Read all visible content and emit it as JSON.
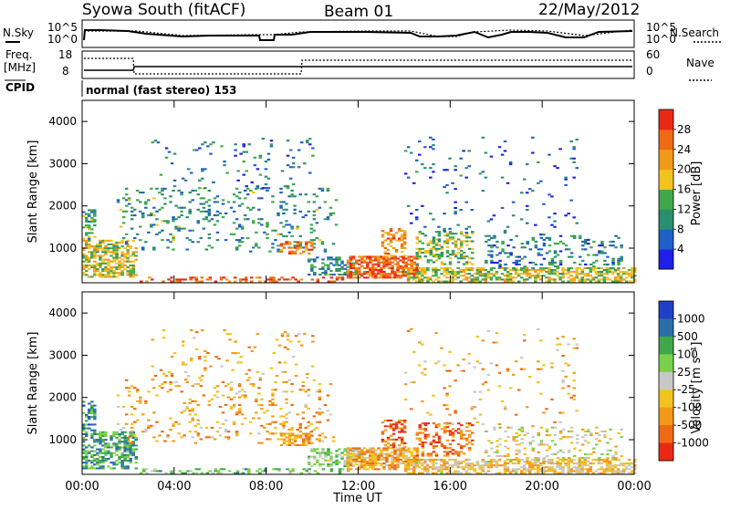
{
  "header": {
    "station": "Syowa South (fitACF)",
    "beam": "Beam 01",
    "date": "22/May/2012"
  },
  "status_panel": {
    "left_top_label": "N.Sky",
    "left_top_ticks": [
      "10^5",
      "10^0"
    ],
    "right_top_ticks": [
      "10^5",
      "10^0"
    ],
    "right_top_label": "N.Search",
    "freq_label_line1": "Freq.",
    "freq_label_line2": "[MHz]",
    "freq_ticks": [
      "18",
      "8"
    ],
    "nave_ticks": [
      "60",
      "0"
    ],
    "nave_label": "Nave",
    "cpid_label": "CPID",
    "cpid_text": "normal (fast stereo) 153"
  },
  "time_axis": {
    "label": "Time UT",
    "ticks": [
      "00:00",
      "04:00",
      "08:00",
      "12:00",
      "16:00",
      "20:00",
      "00:00"
    ]
  },
  "chart_data": [
    {
      "type": "heatmap",
      "panel": "power",
      "ylabel": "Slant Range [km]",
      "yticks": [
        "1000",
        "2000",
        "3000",
        "4000"
      ],
      "ylim": [
        180,
        4500
      ],
      "xlim": [
        0,
        24
      ],
      "colorbar": {
        "label": "Power [dB]",
        "ticks": [
          "4",
          "8",
          "12",
          "16",
          "20",
          "24",
          "28"
        ],
        "colors": [
          "#1f1fe8",
          "#1f5fc8",
          "#2a8f6e",
          "#3fa84a",
          "#f2c21f",
          "#f29a1a",
          "#ee6a14",
          "#e82a14"
        ]
      },
      "bands": [
        {
          "t0": 0.0,
          "t1": 2.3,
          "r0": 300,
          "r1": 1200,
          "density": 0.55,
          "bias": 0.55
        },
        {
          "t0": 0.0,
          "t1": 0.6,
          "r0": 1200,
          "r1": 1900,
          "density": 0.45,
          "bias": 0.35
        },
        {
          "t0": 1.5,
          "t1": 11.0,
          "r0": 900,
          "r1": 2400,
          "density": 0.12,
          "bias": 0.3
        },
        {
          "t0": 3.0,
          "t1": 10.0,
          "r0": 2400,
          "r1": 3600,
          "density": 0.05,
          "bias": 0.2
        },
        {
          "t0": 2.5,
          "t1": 11.5,
          "r0": 190,
          "r1": 320,
          "density": 0.35,
          "bias": 0.9
        },
        {
          "t0": 8.6,
          "t1": 10.0,
          "r0": 850,
          "r1": 1150,
          "density": 0.55,
          "bias": 0.85
        },
        {
          "t0": 9.8,
          "t1": 12.0,
          "r0": 350,
          "r1": 800,
          "density": 0.45,
          "bias": 0.3
        },
        {
          "t0": 11.5,
          "t1": 14.5,
          "r0": 280,
          "r1": 800,
          "density": 0.7,
          "bias": 0.9
        },
        {
          "t0": 13.0,
          "t1": 14.0,
          "r0": 800,
          "r1": 1450,
          "density": 0.45,
          "bias": 0.75
        },
        {
          "t0": 14.5,
          "t1": 17.0,
          "r0": 600,
          "r1": 1400,
          "density": 0.35,
          "bias": 0.45
        },
        {
          "t0": 14.0,
          "t1": 24.0,
          "r0": 190,
          "r1": 550,
          "density": 0.6,
          "bias": 0.55
        },
        {
          "t0": 17.5,
          "t1": 23.5,
          "r0": 500,
          "r1": 1300,
          "density": 0.2,
          "bias": 0.25
        },
        {
          "t0": 14.0,
          "t1": 21.5,
          "r0": 1300,
          "r1": 3600,
          "density": 0.04,
          "bias": 0.15
        }
      ]
    },
    {
      "type": "heatmap",
      "panel": "velocity",
      "ylabel": "Slant Range [km]",
      "yticks": [
        "1000",
        "2000",
        "3000",
        "4000"
      ],
      "ylim": [
        180,
        4500
      ],
      "xlim": [
        0,
        24
      ],
      "colorbar": {
        "label": "Velocity [m s⁻¹]",
        "ticks": [
          "1000",
          "500",
          "100",
          "25",
          "-25",
          "-100",
          "-500",
          "-1000"
        ],
        "colors": [
          "#1f3fc8",
          "#2a6fa8",
          "#3fa84a",
          "#7ad04a",
          "#c8c8c8",
          "#f2c21f",
          "#f29a1a",
          "#ee6a14",
          "#e82a14"
        ]
      },
      "bands": [
        {
          "t0": 0.0,
          "t1": 2.3,
          "r0": 300,
          "r1": 1200,
          "density": 0.55,
          "bias": 0.25
        },
        {
          "t0": 0.0,
          "t1": 0.6,
          "r0": 1200,
          "r1": 1900,
          "density": 0.45,
          "bias": 0.2
        },
        {
          "t0": 1.5,
          "t1": 11.0,
          "r0": 900,
          "r1": 2400,
          "density": 0.12,
          "bias": 0.7
        },
        {
          "t0": 3.0,
          "t1": 10.0,
          "r0": 2400,
          "r1": 3600,
          "density": 0.05,
          "bias": 0.7
        },
        {
          "t0": 2.5,
          "t1": 11.5,
          "r0": 190,
          "r1": 320,
          "density": 0.35,
          "bias": 0.35
        },
        {
          "t0": 8.6,
          "t1": 10.0,
          "r0": 850,
          "r1": 1150,
          "density": 0.55,
          "bias": 0.75
        },
        {
          "t0": 9.8,
          "t1": 12.0,
          "r0": 350,
          "r1": 800,
          "density": 0.45,
          "bias": 0.4
        },
        {
          "t0": 11.5,
          "t1": 14.5,
          "r0": 280,
          "r1": 800,
          "density": 0.7,
          "bias": 0.7
        },
        {
          "t0": 13.0,
          "t1": 14.0,
          "r0": 800,
          "r1": 1450,
          "density": 0.45,
          "bias": 0.9
        },
        {
          "t0": 14.5,
          "t1": 17.0,
          "r0": 600,
          "r1": 1400,
          "density": 0.35,
          "bias": 0.85
        },
        {
          "t0": 14.0,
          "t1": 24.0,
          "r0": 190,
          "r1": 550,
          "density": 0.6,
          "bias": 0.62
        },
        {
          "t0": 17.5,
          "t1": 23.5,
          "r0": 500,
          "r1": 1300,
          "density": 0.2,
          "bias": 0.55
        },
        {
          "t0": 14.0,
          "t1": 21.5,
          "r0": 1300,
          "r1": 3600,
          "density": 0.04,
          "bias": 0.7
        }
      ]
    }
  ]
}
